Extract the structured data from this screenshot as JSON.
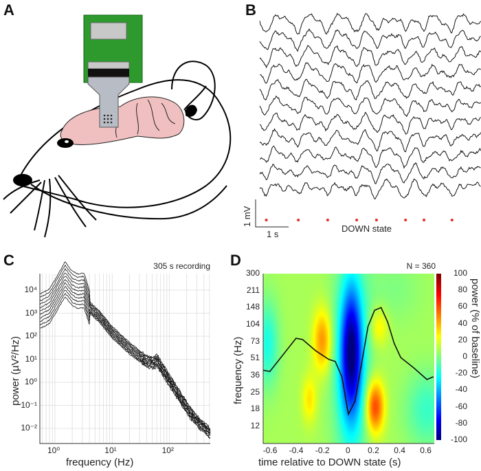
{
  "panels": {
    "a": "A",
    "b": "B",
    "c": "C",
    "d": "D"
  },
  "panel_b": {
    "scale_voltage": "1 mV",
    "scale_time": "1 s",
    "down_state_label": "DOWN state",
    "n_traces": 11,
    "down_state_times_s": [
      0.2,
      1.17,
      2.06,
      2.94,
      3.54,
      4.42,
      4.98,
      5.83
    ],
    "marker_color": "#e0302a"
  },
  "chart_data": [
    {
      "type": "line",
      "panel": "C",
      "title": "305 s recording",
      "xlabel": "frequency (Hz)",
      "ylabel": "power (µV²/Hz)",
      "xscale": "log",
      "yscale": "log",
      "xlim": [
        0.54,
        550
      ],
      "ylim": [
        0.0022,
        50000
      ],
      "xticks": [
        "10⁰",
        "10¹",
        "10²"
      ],
      "yticks": [
        "10⁴",
        "10³",
        "10²",
        "10¹",
        "10⁰",
        "10⁻¹",
        "10⁻²"
      ],
      "grid": true,
      "n_channels": 11,
      "mean_spectrum": {
        "freq": [
          0.54,
          0.8,
          1.0,
          1.5,
          2.0,
          2.5,
          3.2,
          4,
          6,
          10,
          20,
          40,
          55,
          60,
          70,
          100,
          150,
          200,
          300,
          550
        ],
        "power": [
          1200,
          2000,
          5000,
          30000,
          12000,
          9000,
          10000,
          1800,
          700,
          150,
          30,
          8,
          7,
          9,
          5,
          1.2,
          0.25,
          0.08,
          0.02,
          0.005
        ]
      }
    },
    {
      "type": "heatmap",
      "panel": "D",
      "title": "N = 360",
      "xlabel": "time relative to DOWN state (s)",
      "ylabel": "frequency (Hz)",
      "xlim": [
        -0.65,
        0.65
      ],
      "xticks": [
        "-0.6",
        "-0.4",
        "-0.2",
        "0",
        "0.2",
        "0.4",
        "0.6"
      ],
      "yticks": [
        "12",
        "18",
        "25",
        "36",
        "51",
        "73",
        "104",
        "148",
        "211",
        "300"
      ],
      "colorbar": {
        "label": "power (% of baseline)",
        "range": [
          -100,
          100
        ],
        "ticks": [
          "100",
          "80",
          "60",
          "40",
          "20",
          "0",
          "-20",
          "-40",
          "-60",
          "-80",
          "-100"
        ]
      },
      "baseline_value": 8,
      "features": [
        {
          "t": 0.02,
          "freq": 60,
          "value": -80,
          "t_width": 0.055,
          "f_width_ticks": 2.6
        },
        {
          "t": 0.02,
          "freq": 45,
          "value": -35,
          "t_width": 0.1,
          "f_width_ticks": 4.2
        },
        {
          "t": -0.2,
          "freq": 75,
          "value": 40,
          "t_width": 0.05,
          "f_width_ticks": 1.3
        },
        {
          "t": 0.2,
          "freq": 19,
          "value": 58,
          "t_width": 0.05,
          "f_width_ticks": 1.1
        },
        {
          "t": -0.3,
          "freq": 22,
          "value": 22,
          "t_width": 0.04,
          "f_width_ticks": 1.0
        },
        {
          "t": 0.23,
          "freq": 100,
          "value": 22,
          "t_width": 0.05,
          "f_width_ticks": 0.8
        },
        {
          "t": -0.62,
          "freq": 70,
          "value": -28,
          "t_width": 0.06,
          "f_width_ticks": 1.8
        },
        {
          "t": 0.6,
          "freq": 18,
          "value": -22,
          "t_width": 0.12,
          "f_width_ticks": 1.6
        },
        {
          "t": 0.35,
          "freq": 220,
          "value": -8,
          "t_width": 0.15,
          "f_width_ticks": 1.5
        }
      ],
      "overlay_curve": {
        "t": [
          -0.65,
          -0.6,
          -0.5,
          -0.4,
          -0.35,
          -0.25,
          -0.15,
          -0.1,
          -0.05,
          0,
          0.05,
          0.1,
          0.15,
          0.2,
          0.25,
          0.3,
          0.35,
          0.4,
          0.5,
          0.6,
          0.65
        ],
        "freq": [
          40,
          39,
          55,
          78,
          76,
          60,
          50,
          48,
          35,
          16,
          21,
          45,
          100,
          140,
          148,
          110,
          70,
          52,
          42,
          33,
          35
        ]
      }
    }
  ]
}
